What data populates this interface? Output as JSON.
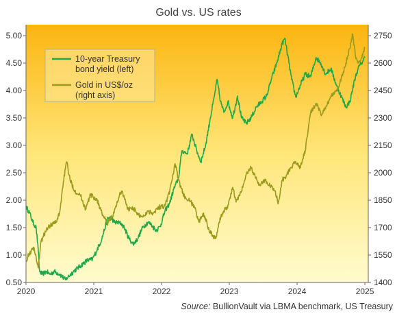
{
  "chart_data": {
    "type": "line",
    "title": "Gold vs. US rates",
    "source_label": "Source:",
    "source_text": "BullionVault via LBMA benchmark, US Treasury",
    "x_ticks": [
      "2020",
      "2021",
      "2022",
      "2023",
      "2024",
      "2025"
    ],
    "x_range": [
      2020.0,
      2025.05
    ],
    "y_left": {
      "ticks": [
        "0.50",
        "1.00",
        "1.50",
        "2.00",
        "2.50",
        "3.00",
        "3.50",
        "4.00",
        "4.50",
        "5.00"
      ],
      "range": [
        0.5,
        5.2
      ]
    },
    "y_right": {
      "ticks": [
        "1400",
        "1550",
        "1700",
        "1850",
        "2000",
        "2150",
        "2300",
        "2450",
        "2600",
        "2750"
      ],
      "range": [
        1400,
        2810
      ]
    },
    "grid": false,
    "legend_position": "top-left",
    "colors": {
      "yield": "#1da84a",
      "gold": "#9a9a1e",
      "bg_top": "#fbb510",
      "bg_bottom": "#fffbcf"
    },
    "series": [
      {
        "key": "yield",
        "name": "10-year Treasury bond yield (left)",
        "axis": "left",
        "points": [
          [
            2020.0,
            1.88
          ],
          [
            2020.05,
            1.78
          ],
          [
            2020.1,
            1.6
          ],
          [
            2020.15,
            1.5
          ],
          [
            2020.18,
            1.1
          ],
          [
            2020.2,
            0.7
          ],
          [
            2020.24,
            0.65
          ],
          [
            2020.3,
            0.7
          ],
          [
            2020.35,
            0.65
          ],
          [
            2020.42,
            0.7
          ],
          [
            2020.5,
            0.65
          ],
          [
            2020.58,
            0.55
          ],
          [
            2020.62,
            0.6
          ],
          [
            2020.7,
            0.7
          ],
          [
            2020.8,
            0.8
          ],
          [
            2020.9,
            0.9
          ],
          [
            2020.98,
            0.92
          ],
          [
            2021.05,
            1.1
          ],
          [
            2021.12,
            1.3
          ],
          [
            2021.2,
            1.65
          ],
          [
            2021.25,
            1.7
          ],
          [
            2021.3,
            1.6
          ],
          [
            2021.4,
            1.58
          ],
          [
            2021.45,
            1.5
          ],
          [
            2021.52,
            1.3
          ],
          [
            2021.58,
            1.2
          ],
          [
            2021.65,
            1.3
          ],
          [
            2021.72,
            1.5
          ],
          [
            2021.8,
            1.6
          ],
          [
            2021.85,
            1.55
          ],
          [
            2021.92,
            1.45
          ],
          [
            2021.98,
            1.52
          ],
          [
            2022.05,
            1.8
          ],
          [
            2022.12,
            1.95
          ],
          [
            2022.18,
            2.2
          ],
          [
            2022.25,
            2.4
          ],
          [
            2022.3,
            2.9
          ],
          [
            2022.38,
            2.85
          ],
          [
            2022.45,
            3.2
          ],
          [
            2022.52,
            2.9
          ],
          [
            2022.58,
            2.7
          ],
          [
            2022.65,
            3.0
          ],
          [
            2022.72,
            3.5
          ],
          [
            2022.78,
            3.9
          ],
          [
            2022.82,
            4.2
          ],
          [
            2022.87,
            3.8
          ],
          [
            2022.92,
            3.6
          ],
          [
            2022.98,
            3.8
          ],
          [
            2023.05,
            3.5
          ],
          [
            2023.12,
            3.9
          ],
          [
            2023.18,
            3.5
          ],
          [
            2023.25,
            3.4
          ],
          [
            2023.32,
            3.5
          ],
          [
            2023.4,
            3.7
          ],
          [
            2023.48,
            3.8
          ],
          [
            2023.55,
            3.9
          ],
          [
            2023.62,
            4.2
          ],
          [
            2023.7,
            4.5
          ],
          [
            2023.78,
            4.85
          ],
          [
            2023.82,
            4.95
          ],
          [
            2023.88,
            4.5
          ],
          [
            2023.92,
            4.2
          ],
          [
            2023.98,
            3.88
          ],
          [
            2024.05,
            4.1
          ],
          [
            2024.12,
            4.3
          ],
          [
            2024.2,
            4.25
          ],
          [
            2024.28,
            4.6
          ],
          [
            2024.35,
            4.5
          ],
          [
            2024.42,
            4.3
          ],
          [
            2024.5,
            4.4
          ],
          [
            2024.58,
            4.1
          ],
          [
            2024.65,
            3.9
          ],
          [
            2024.72,
            3.7
          ],
          [
            2024.78,
            3.8
          ],
          [
            2024.85,
            4.2
          ],
          [
            2024.9,
            4.4
          ],
          [
            2024.95,
            4.5
          ],
          [
            2025.0,
            4.6
          ]
        ]
      },
      {
        "key": "gold",
        "name": "Gold in US$/oz (right axis)",
        "axis": "right",
        "points": [
          [
            2020.0,
            1520
          ],
          [
            2020.05,
            1560
          ],
          [
            2020.12,
            1590
          ],
          [
            2020.18,
            1480
          ],
          [
            2020.22,
            1620
          ],
          [
            2020.3,
            1690
          ],
          [
            2020.38,
            1720
          ],
          [
            2020.45,
            1730
          ],
          [
            2020.5,
            1790
          ],
          [
            2020.55,
            1950
          ],
          [
            2020.6,
            2060
          ],
          [
            2020.65,
            1960
          ],
          [
            2020.72,
            1900
          ],
          [
            2020.8,
            1880
          ],
          [
            2020.88,
            1800
          ],
          [
            2020.95,
            1880
          ],
          [
            2021.05,
            1850
          ],
          [
            2021.12,
            1780
          ],
          [
            2021.2,
            1720
          ],
          [
            2021.3,
            1780
          ],
          [
            2021.38,
            1880
          ],
          [
            2021.42,
            1900
          ],
          [
            2021.5,
            1800
          ],
          [
            2021.58,
            1810
          ],
          [
            2021.65,
            1770
          ],
          [
            2021.72,
            1760
          ],
          [
            2021.8,
            1790
          ],
          [
            2021.88,
            1780
          ],
          [
            2021.95,
            1810
          ],
          [
            2022.05,
            1820
          ],
          [
            2022.12,
            1900
          ],
          [
            2022.2,
            2050
          ],
          [
            2022.25,
            1960
          ],
          [
            2022.32,
            1880
          ],
          [
            2022.4,
            1850
          ],
          [
            2022.48,
            1820
          ],
          [
            2022.55,
            1730
          ],
          [
            2022.62,
            1780
          ],
          [
            2022.7,
            1690
          ],
          [
            2022.75,
            1660
          ],
          [
            2022.8,
            1640
          ],
          [
            2022.85,
            1730
          ],
          [
            2022.9,
            1780
          ],
          [
            2022.98,
            1820
          ],
          [
            2023.05,
            1920
          ],
          [
            2023.1,
            1840
          ],
          [
            2023.18,
            1900
          ],
          [
            2023.25,
            1990
          ],
          [
            2023.32,
            2030
          ],
          [
            2023.38,
            1980
          ],
          [
            2023.45,
            1930
          ],
          [
            2023.52,
            1960
          ],
          [
            2023.6,
            1930
          ],
          [
            2023.68,
            1900
          ],
          [
            2023.72,
            1830
          ],
          [
            2023.78,
            1960
          ],
          [
            2023.85,
            1990
          ],
          [
            2023.92,
            2030
          ],
          [
            2023.98,
            2060
          ],
          [
            2024.05,
            2030
          ],
          [
            2024.12,
            2120
          ],
          [
            2024.2,
            2330
          ],
          [
            2024.28,
            2380
          ],
          [
            2024.35,
            2320
          ],
          [
            2024.42,
            2350
          ],
          [
            2024.5,
            2420
          ],
          [
            2024.58,
            2450
          ],
          [
            2024.65,
            2510
          ],
          [
            2024.72,
            2600
          ],
          [
            2024.78,
            2680
          ],
          [
            2024.82,
            2760
          ],
          [
            2024.86,
            2640
          ],
          [
            2024.9,
            2600
          ],
          [
            2024.95,
            2630
          ],
          [
            2025.0,
            2680
          ]
        ]
      }
    ]
  }
}
